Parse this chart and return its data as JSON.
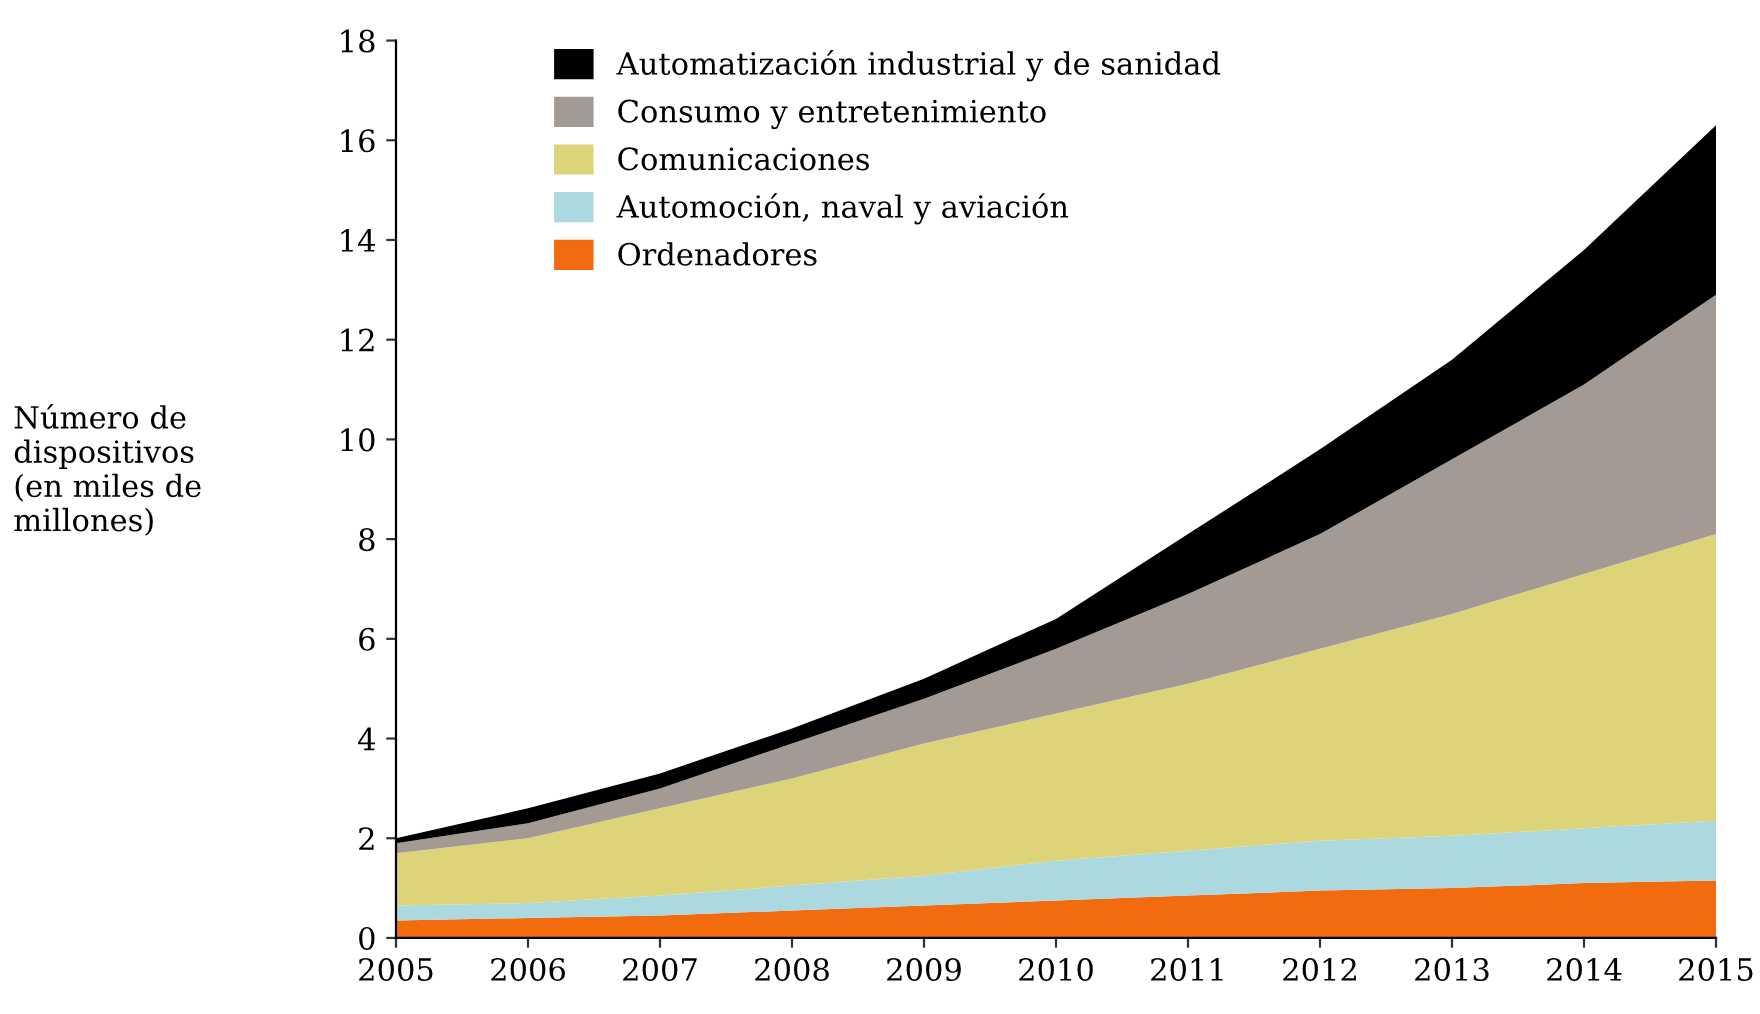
{
  "chart_data": {
    "type": "area",
    "stacked": true,
    "ylabel": "Número de\ndispositivos\n(en miles de\nmillones)",
    "x": [
      2005,
      2006,
      2007,
      2008,
      2009,
      2010,
      2011,
      2012,
      2013,
      2014,
      2015
    ],
    "series": [
      {
        "name": "Ordenadores",
        "color": "#f26b0f",
        "values": [
          0.35,
          0.4,
          0.45,
          0.55,
          0.65,
          0.75,
          0.85,
          0.95,
          1.0,
          1.1,
          1.15
        ]
      },
      {
        "name": "Automoción, naval y aviación",
        "color": "#acd8e0",
        "values": [
          0.3,
          0.3,
          0.4,
          0.5,
          0.6,
          0.8,
          0.9,
          1.0,
          1.05,
          1.1,
          1.2
        ]
      },
      {
        "name": "Comunicaciones",
        "color": "#ddd47a",
        "values": [
          1.05,
          1.3,
          1.75,
          2.15,
          2.65,
          2.95,
          3.35,
          3.85,
          4.45,
          5.1,
          5.75
        ]
      },
      {
        "name": "Consumo y entretenimiento",
        "color": "#a39a94",
        "values": [
          0.2,
          0.3,
          0.4,
          0.7,
          0.9,
          1.3,
          1.8,
          2.3,
          3.1,
          3.8,
          4.8
        ]
      },
      {
        "name": "Automatización industrial y de sanidad",
        "color": "#000000",
        "values": [
          0.1,
          0.3,
          0.3,
          0.3,
          0.4,
          0.6,
          1.2,
          1.7,
          2.0,
          2.7,
          3.4
        ]
      }
    ],
    "xlim": [
      2005,
      2015
    ],
    "xticks": [
      2005,
      2006,
      2007,
      2008,
      2009,
      2010,
      2011,
      2012,
      2013,
      2014,
      2015
    ],
    "ylim": [
      0,
      18
    ],
    "yticks": [
      0,
      2,
      4,
      6,
      8,
      10,
      12,
      14,
      16,
      18
    ],
    "grid": false,
    "legend": "top left"
  }
}
